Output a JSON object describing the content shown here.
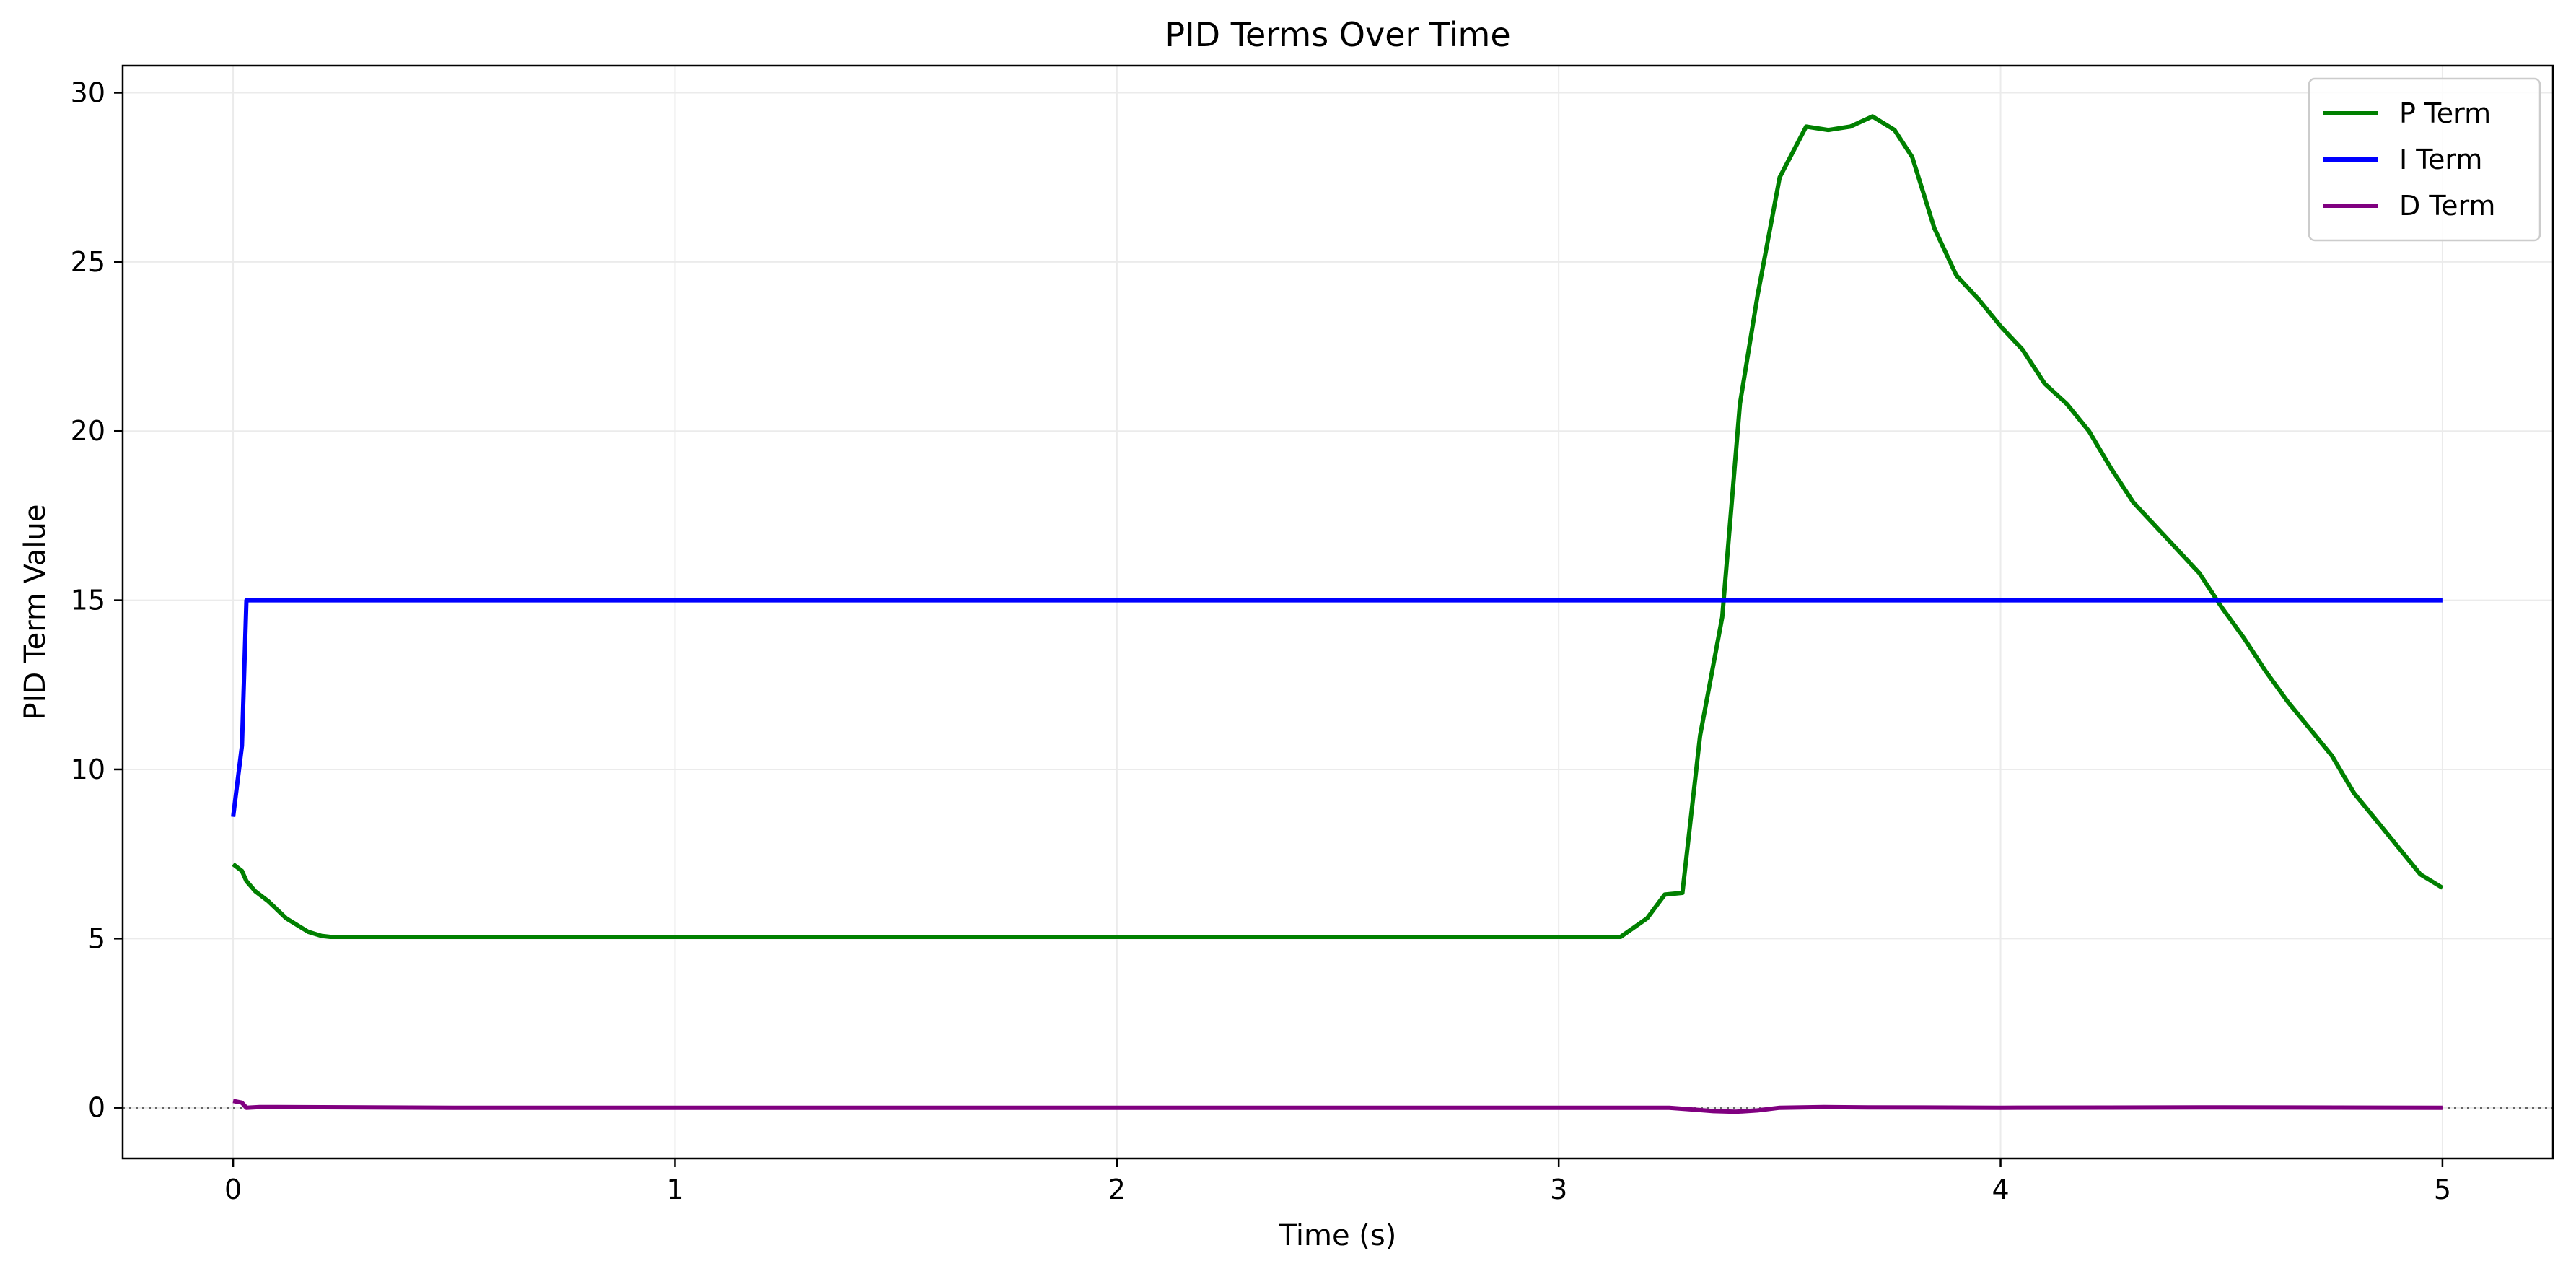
{
  "chart_data": {
    "type": "line",
    "title": "PID Terms Over Time",
    "xlabel": "Time (s)",
    "ylabel": "PID Term Value",
    "xlim": [
      -0.25,
      5.25
    ],
    "ylim": [
      -1.5,
      30.8
    ],
    "xticks": [
      0,
      1,
      2,
      3,
      4,
      5
    ],
    "yticks": [
      0,
      5,
      10,
      15,
      20,
      25,
      30
    ],
    "grid": true,
    "legend_position": "top-right",
    "reference_line": {
      "y": 0,
      "style": "dotted",
      "color": "#666666"
    },
    "series": [
      {
        "name": "P Term",
        "color": "#008000",
        "x": [
          0,
          0.02,
          0.03,
          0.05,
          0.08,
          0.12,
          0.17,
          0.2,
          0.22,
          0.5,
          1.0,
          1.5,
          2.0,
          2.5,
          3.0,
          3.14,
          3.2,
          3.24,
          3.28,
          3.32,
          3.37,
          3.41,
          3.45,
          3.5,
          3.56,
          3.61,
          3.66,
          3.71,
          3.76,
          3.8,
          3.85,
          3.9,
          3.95,
          4.0,
          4.05,
          4.1,
          4.15,
          4.2,
          4.25,
          4.3,
          4.35,
          4.4,
          4.45,
          4.5,
          4.55,
          4.6,
          4.65,
          4.7,
          4.75,
          4.8,
          4.85,
          4.9,
          4.95,
          5.0
        ],
        "y": [
          7.2,
          7.0,
          6.7,
          6.4,
          6.1,
          5.6,
          5.2,
          5.08,
          5.05,
          5.05,
          5.05,
          5.05,
          5.05,
          5.05,
          5.05,
          5.05,
          5.6,
          6.3,
          6.35,
          11.0,
          14.5,
          20.8,
          24.0,
          27.5,
          29.0,
          28.9,
          29.0,
          29.3,
          28.9,
          28.1,
          26.0,
          24.6,
          23.9,
          23.1,
          22.4,
          21.4,
          20.8,
          20.0,
          18.9,
          17.9,
          17.2,
          16.5,
          15.8,
          14.8,
          13.9,
          12.9,
          12.0,
          11.2,
          10.4,
          9.3,
          8.5,
          7.7,
          6.9,
          6.5
        ]
      },
      {
        "name": "I Term",
        "color": "#0000ff",
        "x": [
          0,
          0.02,
          0.03,
          0.5,
          1.0,
          2.0,
          3.0,
          4.0,
          5.0
        ],
        "y": [
          8.6,
          10.7,
          15.0,
          15.0,
          15.0,
          15.0,
          15.0,
          15.0,
          15.0
        ]
      },
      {
        "name": "D Term",
        "color": "#800080",
        "x": [
          0,
          0.02,
          0.03,
          0.06,
          0.1,
          0.5,
          1.0,
          2.0,
          3.0,
          3.25,
          3.3,
          3.35,
          3.4,
          3.45,
          3.5,
          3.6,
          3.7,
          4.0,
          4.5,
          5.0
        ],
        "y": [
          0.2,
          0.15,
          0.0,
          0.02,
          0.02,
          0.0,
          0.0,
          0.0,
          0.0,
          0.0,
          -0.05,
          -0.1,
          -0.12,
          -0.08,
          0.0,
          0.02,
          0.01,
          0.0,
          0.01,
          0.0
        ]
      }
    ]
  }
}
